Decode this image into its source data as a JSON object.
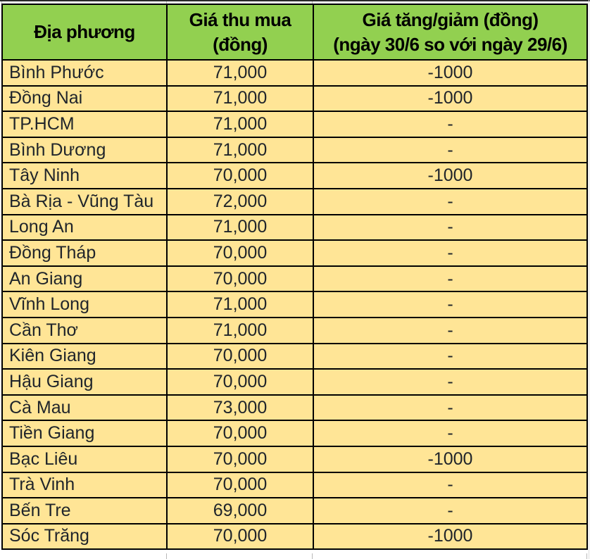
{
  "table": {
    "header": {
      "location": "Địa phương",
      "price_line1": "Giá thu mua",
      "price_line2": "(đồng)",
      "change_line1": "Giá tăng/giảm (đồng)",
      "change_line2": "(ngày 30/6 so với ngày 29/6)"
    },
    "rows": [
      {
        "province": "Bình Phước",
        "price": "71,000",
        "change": "-1000"
      },
      {
        "province": "Đồng Nai",
        "price": "71,000",
        "change": "-1000"
      },
      {
        "province": "TP.HCM",
        "price": "71,000",
        "change": "-"
      },
      {
        "province": "Bình Dương",
        "price": "71,000",
        "change": "-"
      },
      {
        "province": "Tây Ninh",
        "price": "70,000",
        "change": "-1000"
      },
      {
        "province": "Bà Rịa - Vũng Tàu",
        "price": "72,000",
        "change": "-"
      },
      {
        "province": "Long An",
        "price": "71,000",
        "change": "-"
      },
      {
        "province": "Đồng Tháp",
        "price": "70,000",
        "change": "-"
      },
      {
        "province": "An Giang",
        "price": "70,000",
        "change": "-"
      },
      {
        "province": "Vĩnh Long",
        "price": "71,000",
        "change": "-"
      },
      {
        "province": "Cần Thơ",
        "price": "71,000",
        "change": "-"
      },
      {
        "province": "Kiên Giang",
        "price": "70,000",
        "change": "-"
      },
      {
        "province": "Hậu Giang",
        "price": "70,000",
        "change": "-"
      },
      {
        "province": "Cà Mau",
        "price": "73,000",
        "change": "-"
      },
      {
        "province": "Tiền Giang",
        "price": "70,000",
        "change": "-"
      },
      {
        "province": "Bạc Liêu",
        "price": "70,000",
        "change": "-1000"
      },
      {
        "province": "Trà Vinh",
        "price": "70,000",
        "change": "-"
      },
      {
        "province": "Bến Tre",
        "price": "69,000",
        "change": "-"
      },
      {
        "province": "Sóc Trăng",
        "price": "70,000",
        "change": "-1000"
      }
    ]
  },
  "chart_data": {
    "type": "table",
    "title": "",
    "columns": [
      "Địa phương",
      "Giá thu mua (đồng)",
      "Giá tăng/giảm (đồng) (ngày 30/6 so với ngày 29/6)"
    ],
    "rows": [
      [
        "Bình Phước",
        71000,
        -1000
      ],
      [
        "Đồng Nai",
        71000,
        -1000
      ],
      [
        "TP.HCM",
        71000,
        null
      ],
      [
        "Bình Dương",
        71000,
        null
      ],
      [
        "Tây Ninh",
        70000,
        -1000
      ],
      [
        "Bà Rịa - Vũng Tàu",
        72000,
        null
      ],
      [
        "Long An",
        71000,
        null
      ],
      [
        "Đồng Tháp",
        70000,
        null
      ],
      [
        "An Giang",
        70000,
        null
      ],
      [
        "Vĩnh Long",
        71000,
        null
      ],
      [
        "Cần Thơ",
        71000,
        null
      ],
      [
        "Kiên Giang",
        70000,
        null
      ],
      [
        "Hậu Giang",
        70000,
        null
      ],
      [
        "Cà Mau",
        73000,
        null
      ],
      [
        "Tiền Giang",
        70000,
        null
      ],
      [
        "Bạc Liêu",
        70000,
        -1000
      ],
      [
        "Trà Vinh",
        70000,
        null
      ],
      [
        "Bến Tre",
        69000,
        null
      ],
      [
        "Sóc Trăng",
        70000,
        -1000
      ]
    ],
    "no_change_symbol": "-"
  },
  "colors": {
    "header_bg": "#92d050",
    "row_bg": "#ffe596",
    "border": "#000000",
    "body_text": "#20252b",
    "header_text": "#000000"
  }
}
